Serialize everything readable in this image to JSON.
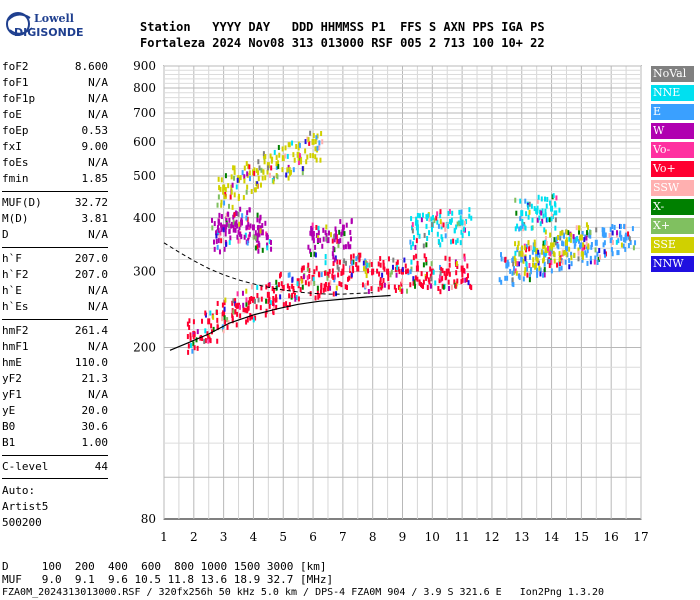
{
  "logo": {
    "line1": "Lowell",
    "line2": "DIGISONDE"
  },
  "header": {
    "row1": "Station   YYYY DAY   DDD HHMMSS P1  FFS S AXN PPS IGA PS",
    "row2": "Fortaleza 2024 Nov08 313 013000 RSF 005 2 713 100 10+ 22"
  },
  "params": [
    {
      "name": "foF2",
      "value": "8.600"
    },
    {
      "name": "foF1",
      "value": "N/A"
    },
    {
      "name": "foF1p",
      "value": "N/A"
    },
    {
      "name": "foE",
      "value": "N/A"
    },
    {
      "name": "foEp",
      "value": "0.53"
    },
    {
      "name": "fxI",
      "value": "9.00"
    },
    {
      "name": "foEs",
      "value": "N/A"
    },
    {
      "name": "fmin",
      "value": "1.85"
    },
    {
      "name": "MUF(D)",
      "value": "32.72"
    },
    {
      "name": "M(D)",
      "value": "3.81"
    },
    {
      "name": "D",
      "value": "N/A"
    },
    {
      "name": "h`F",
      "value": "207.0"
    },
    {
      "name": "h`F2",
      "value": "207.0"
    },
    {
      "name": "h`E",
      "value": "N/A"
    },
    {
      "name": "h`Es",
      "value": "N/A"
    },
    {
      "name": "hmF2",
      "value": "261.4"
    },
    {
      "name": "hmF1",
      "value": "N/A"
    },
    {
      "name": "hmE",
      "value": "110.0"
    },
    {
      "name": "yF2",
      "value": "21.3"
    },
    {
      "name": "yF1",
      "value": "N/A"
    },
    {
      "name": "yE",
      "value": "20.0"
    },
    {
      "name": "B0",
      "value": "30.6"
    },
    {
      "name": "B1",
      "value": "1.00"
    },
    {
      "name": "C-level",
      "value": "44"
    }
  ],
  "auto": {
    "line1": "Auto:",
    "line2": "Artist5",
    "line3": "500200"
  },
  "legend": [
    {
      "label": "NoVal",
      "color": "#808080"
    },
    {
      "label": "NNE",
      "color": "#00e0f0"
    },
    {
      "label": "E",
      "color": "#3aa0ff"
    },
    {
      "label": "W",
      "color": "#b000b0"
    },
    {
      "label": "Vo-",
      "color": "#ff30a0"
    },
    {
      "label": "Vo+",
      "color": "#ff0030"
    },
    {
      "label": "SSW",
      "color": "#ffb0b0"
    },
    {
      "label": "X-",
      "color": "#008000"
    },
    {
      "label": "X+",
      "color": "#80c060"
    },
    {
      "label": "SSE",
      "color": "#d0d000"
    },
    {
      "label": "NNW",
      "color": "#2010e0"
    }
  ],
  "footer": {
    "d_row": "D     100  200  400  600  800 1000 1500 3000 [km]",
    "muf_row": "MUF   9.0  9.1  9.6 10.5 11.8 13.6 18.9 32.7 [MHz]",
    "file_row": "FZA0M_2024313013000.RSF / 320fx256h 50 kHz 5.0 km / DPS-4 FZA0M 904 / 3.9 S 321.6 E   Ion2Png 1.3.20"
  },
  "chart_data": {
    "type": "scatter",
    "xlabel": "",
    "ylabel": "",
    "xlim": [
      1,
      17
    ],
    "ylim": [
      80,
      900
    ],
    "xticks": [
      "1",
      "2",
      "3",
      "4",
      "5",
      "6",
      "7",
      "8",
      "9",
      "10",
      "11",
      "12",
      "13",
      "14",
      "15",
      "16",
      "17"
    ],
    "yticks": [
      "80",
      "200",
      "300",
      "400",
      "500",
      "600",
      "700",
      "800",
      "900"
    ],
    "yscale": "log",
    "grid": true,
    "series": [
      {
        "name": "Vo+",
        "points": [
          [
            2.0,
            215
          ],
          [
            2.5,
            230
          ],
          [
            3.0,
            240
          ],
          [
            3.5,
            250
          ],
          [
            4.0,
            258
          ],
          [
            4.5,
            265
          ],
          [
            5.0,
            275
          ],
          [
            5.5,
            285
          ],
          [
            6.0,
            290
          ],
          [
            6.5,
            295
          ],
          [
            7.0,
            300
          ],
          [
            7.5,
            305
          ],
          [
            8.0,
            300
          ],
          [
            8.5,
            300
          ],
          [
            9.0,
            300
          ],
          [
            9.5,
            305
          ],
          [
            10.0,
            300
          ],
          [
            10.5,
            300
          ],
          [
            11.0,
            305
          ]
        ]
      },
      {
        "name": "E",
        "points": [
          [
            12.5,
            310
          ],
          [
            13.0,
            320
          ],
          [
            13.5,
            325
          ],
          [
            14.0,
            335
          ],
          [
            14.5,
            340
          ],
          [
            15.0,
            345
          ],
          [
            15.5,
            350
          ],
          [
            16.0,
            355
          ],
          [
            16.5,
            360
          ]
        ]
      },
      {
        "name": "W",
        "points": [
          [
            2.8,
            370
          ],
          [
            3.0,
            380
          ],
          [
            3.3,
            385
          ],
          [
            3.6,
            390
          ],
          [
            4.0,
            380
          ],
          [
            4.3,
            370
          ],
          [
            6.0,
            360
          ],
          [
            6.5,
            355
          ],
          [
            7.0,
            370
          ]
        ]
      },
      {
        "name": "SSE",
        "points": [
          [
            3.0,
            470
          ],
          [
            3.5,
            490
          ],
          [
            4.0,
            510
          ],
          [
            4.5,
            530
          ],
          [
            5.0,
            550
          ],
          [
            5.5,
            560
          ],
          [
            6.0,
            600
          ],
          [
            13.0,
            330
          ],
          [
            13.5,
            335
          ],
          [
            14.0,
            345
          ],
          [
            14.5,
            350
          ],
          [
            15.0,
            360
          ]
        ]
      },
      {
        "name": "NNE",
        "points": [
          [
            9.5,
            380
          ],
          [
            10.0,
            385
          ],
          [
            10.5,
            385
          ],
          [
            11.0,
            390
          ],
          [
            13.0,
            410
          ],
          [
            13.5,
            415
          ],
          [
            14.0,
            420
          ]
        ]
      }
    ],
    "trace_label": "profile"
  }
}
